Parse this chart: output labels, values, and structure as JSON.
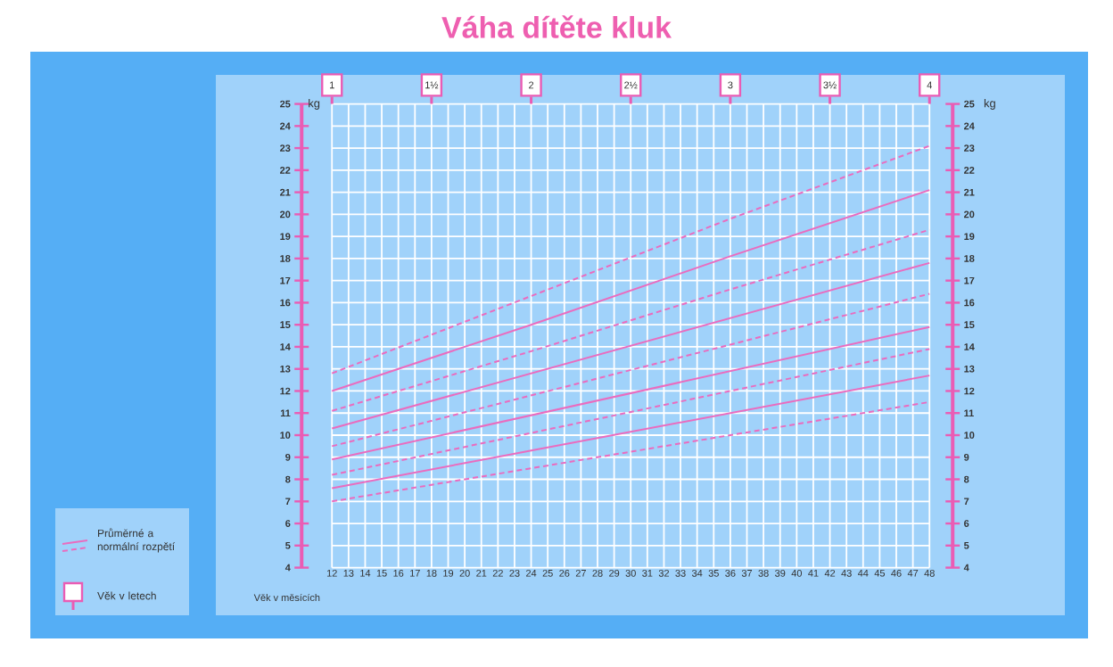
{
  "chart_data": {
    "type": "line",
    "title": "Váha dítěte kluk",
    "xlabel": "Věk v měsících",
    "ylabel": "kg",
    "y2label": "kg",
    "x": [
      12,
      24,
      36,
      48
    ],
    "series": [
      {
        "color": "#ea6cbf",
        "line_style": "dashed",
        "values": [
          12.8,
          16.3,
          19.8,
          23.1
        ]
      },
      {
        "color": "#ea6cbf",
        "line_style": "solid",
        "values": [
          12.0,
          15.0,
          18.1,
          21.1
        ]
      },
      {
        "color": "#ea6cbf",
        "line_style": "dashed",
        "values": [
          11.1,
          13.8,
          16.6,
          19.3
        ]
      },
      {
        "color": "#ea6cbf",
        "line_style": "solid",
        "values": [
          10.3,
          12.8,
          15.3,
          17.8
        ]
      },
      {
        "color": "#ea6cbf",
        "line_style": "dashed",
        "values": [
          9.5,
          11.8,
          14.1,
          16.4
        ]
      },
      {
        "color": "#ea6cbf",
        "line_style": "solid",
        "values": [
          8.9,
          10.9,
          12.9,
          14.9
        ]
      },
      {
        "color": "#ea6cbf",
        "line_style": "dashed",
        "values": [
          8.2,
          10.1,
          12.0,
          13.9
        ]
      },
      {
        "color": "#ea6cbf",
        "line_style": "solid",
        "values": [
          7.6,
          9.3,
          11.0,
          12.7
        ]
      },
      {
        "color": "#ea6cbf",
        "line_style": "dashed",
        "values": [
          7.0,
          8.5,
          10.0,
          11.5
        ]
      }
    ],
    "xlim": [
      12,
      48
    ],
    "xticks": [
      12,
      13,
      14,
      15,
      16,
      17,
      18,
      19,
      20,
      21,
      22,
      23,
      24,
      25,
      26,
      27,
      28,
      29,
      30,
      31,
      32,
      33,
      34,
      35,
      36,
      37,
      38,
      39,
      40,
      41,
      42,
      43,
      44,
      45,
      46,
      47,
      48
    ],
    "ylim": [
      4,
      25
    ],
    "yticks": [
      4,
      5,
      6,
      7,
      8,
      9,
      10,
      11,
      12,
      13,
      14,
      15,
      16,
      17,
      18,
      19,
      20,
      21,
      22,
      23,
      24,
      25
    ],
    "y2lim": [
      4,
      25
    ],
    "y2ticks": [
      4,
      5,
      6,
      7,
      8,
      9,
      10,
      11,
      12,
      13,
      14,
      15,
      16,
      17,
      18,
      19,
      20,
      21,
      22,
      23,
      24,
      25
    ],
    "x2lim": [
      1,
      4
    ],
    "x2ticks": [
      1,
      {
        "value": 1.5,
        "label": "1½"
      },
      2,
      {
        "value": 2.5,
        "label": "2½"
      },
      3,
      {
        "value": 3.5,
        "label": "3½"
      },
      4
    ],
    "grid": true,
    "annotations": [
      "Průměrné a normální rozpětí",
      "Věk v letech"
    ]
  }
}
